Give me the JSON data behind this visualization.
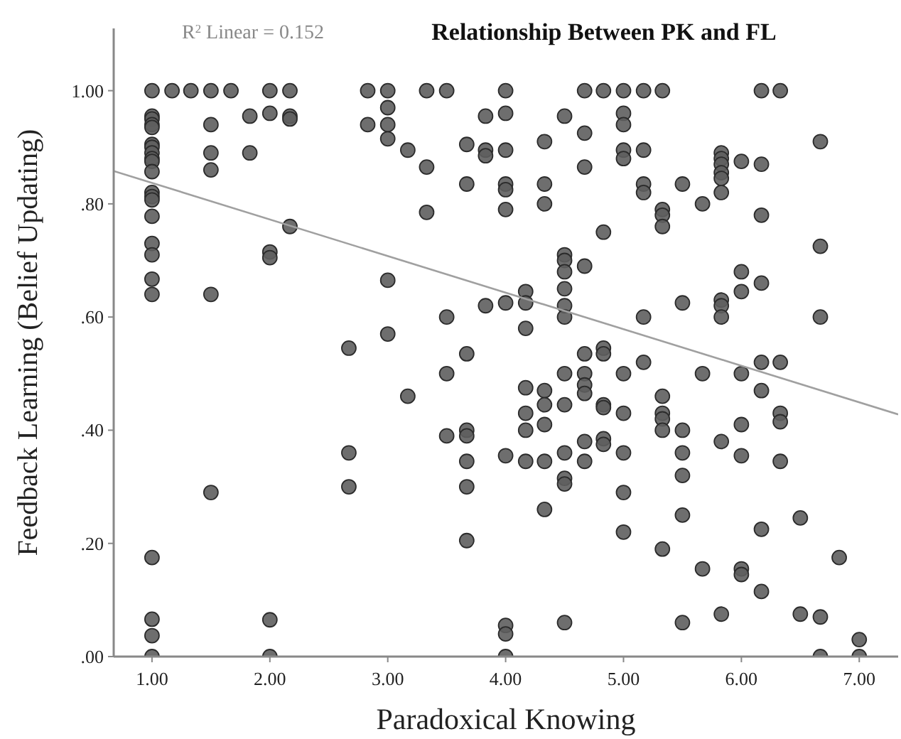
{
  "chart_data": {
    "type": "scatter",
    "title": "Relationship Between PK and FL",
    "xlabel": "Paradoxical Knowing",
    "ylabel": "Feedback Learning (Belief Updating)",
    "annotations": [
      "R$^{2}$ Linear = 0.152"
    ],
    "xlim": [
      0.675,
      7.33
    ],
    "ylim": [
      0,
      1.11
    ],
    "xticks": [
      {
        "value": 1,
        "label": "1.00"
      },
      {
        "value": 2,
        "label": "2.00"
      },
      {
        "value": 3,
        "label": "3.00"
      },
      {
        "value": 4,
        "label": "4.00"
      },
      {
        "value": 5,
        "label": "5.00"
      },
      {
        "value": 6,
        "label": "6.00"
      },
      {
        "value": 7,
        "label": "7.00"
      }
    ],
    "yticks": [
      {
        "value": 0,
        "label": ".00"
      },
      {
        "value": 0.2,
        "label": ".20"
      },
      {
        "value": 0.4,
        "label": ".40"
      },
      {
        "value": 0.6,
        "label": ".60"
      },
      {
        "value": 0.8,
        "label": ".80"
      },
      {
        "value": 1,
        "label": "1.00"
      }
    ],
    "grid": false,
    "series": [
      {
        "marker": "circle",
        "color": "#5e5e5e",
        "x": [
          1,
          1,
          1,
          1,
          1,
          1,
          1,
          1,
          1,
          1,
          1,
          1,
          1,
          1,
          1,
          1,
          1,
          1,
          1,
          1,
          1,
          1,
          1,
          1.17,
          1.33,
          1.5,
          1.5,
          1.5,
          1.5,
          1.5,
          1.5,
          1.67,
          1.83,
          1.83,
          2,
          2,
          2,
          2,
          2,
          2,
          2.17,
          2.17,
          2.17,
          2.17,
          2.67,
          2.67,
          2.67,
          2.83,
          2.83,
          3,
          3,
          3,
          3,
          3,
          3,
          3.17,
          3.17,
          3.33,
          3.33,
          3.33,
          3.5,
          3.5,
          3.5,
          3.5,
          3.67,
          3.67,
          3.67,
          3.67,
          3.67,
          3.67,
          3.67,
          3.67,
          3.83,
          3.83,
          3.83,
          3.83,
          4,
          4,
          4,
          4,
          4,
          4,
          4,
          4,
          4,
          4,
          4,
          4.17,
          4.17,
          4.17,
          4.17,
          4.17,
          4.17,
          4.17,
          4.33,
          4.33,
          4.33,
          4.33,
          4.33,
          4.33,
          4.33,
          4.33,
          4.5,
          4.5,
          4.5,
          4.5,
          4.5,
          4.5,
          4.5,
          4.5,
          4.5,
          4.5,
          4.5,
          4.5,
          4.5,
          4.67,
          4.67,
          4.67,
          4.67,
          4.67,
          4.67,
          4.67,
          4.67,
          4.67,
          4.67,
          4.83,
          4.83,
          4.83,
          4.83,
          4.83,
          4.83,
          4.83,
          4.83,
          5,
          5,
          5,
          5,
          5,
          5,
          5,
          5,
          5,
          5,
          5.17,
          5.17,
          5.17,
          5.17,
          5.17,
          5.17,
          5.33,
          5.33,
          5.33,
          5.33,
          5.33,
          5.33,
          5.33,
          5.33,
          5.33,
          5.5,
          5.5,
          5.5,
          5.5,
          5.5,
          5.5,
          5.5,
          5.67,
          5.67,
          5.67,
          5.83,
          5.83,
          5.83,
          5.83,
          5.83,
          5.83,
          5.83,
          5.83,
          5.83,
          5.83,
          5.83,
          6,
          6,
          6,
          6,
          6,
          6,
          6,
          6,
          6.17,
          6.17,
          6.17,
          6.17,
          6.17,
          6.17,
          6.17,
          6.17,
          6.33,
          6.33,
          6.33,
          6.33,
          6.33,
          6.5,
          6.5,
          6.67,
          6.67,
          6.67,
          6.67,
          6.67,
          6.83,
          7,
          7
        ],
        "values": [
          1,
          0.955,
          0.95,
          0.94,
          0.935,
          0.905,
          0.9,
          0.89,
          0.88,
          0.875,
          0.857,
          0.82,
          0.813,
          0.807,
          0.778,
          0.73,
          0.71,
          0.667,
          0.64,
          0.175,
          0.066,
          0.037,
          0,
          1,
          1,
          1,
          0.94,
          0.89,
          0.86,
          0.64,
          0.29,
          1,
          0.955,
          0.89,
          1,
          0.96,
          0.715,
          0.705,
          0.065,
          0,
          1,
          0.955,
          0.95,
          0.76,
          0.545,
          0.36,
          0.3,
          1,
          0.94,
          1,
          0.97,
          0.94,
          0.915,
          0.665,
          0.57,
          0.895,
          0.46,
          1,
          0.865,
          0.785,
          1,
          0.6,
          0.5,
          0.39,
          0.905,
          0.835,
          0.535,
          0.4,
          0.39,
          0.345,
          0.3,
          0.205,
          0.955,
          0.895,
          0.885,
          0.62,
          1,
          0.96,
          0.895,
          0.835,
          0.825,
          0.79,
          0.625,
          0.355,
          0.055,
          0.04,
          0,
          0.645,
          0.625,
          0.58,
          0.475,
          0.43,
          0.4,
          0.345,
          0.91,
          0.835,
          0.8,
          0.47,
          0.445,
          0.41,
          0.345,
          0.26,
          0.955,
          0.71,
          0.7,
          0.68,
          0.65,
          0.62,
          0.6,
          0.5,
          0.445,
          0.36,
          0.315,
          0.305,
          0.06,
          1,
          0.925,
          0.865,
          0.69,
          0.535,
          0.5,
          0.48,
          0.465,
          0.38,
          0.345,
          1,
          0.75,
          0.545,
          0.535,
          0.445,
          0.44,
          0.385,
          0.375,
          1,
          0.96,
          0.94,
          0.895,
          0.88,
          0.5,
          0.43,
          0.36,
          0.29,
          0.22,
          1,
          0.895,
          0.835,
          0.82,
          0.6,
          0.52,
          1,
          0.79,
          0.78,
          0.76,
          0.46,
          0.43,
          0.42,
          0.4,
          0.19,
          0.835,
          0.625,
          0.4,
          0.36,
          0.32,
          0.25,
          0.06,
          0.8,
          0.5,
          0.155,
          0.89,
          0.88,
          0.87,
          0.855,
          0.845,
          0.82,
          0.63,
          0.62,
          0.6,
          0.38,
          0.075,
          0.875,
          0.68,
          0.645,
          0.5,
          0.41,
          0.355,
          0.155,
          0.145,
          1,
          0.87,
          0.78,
          0.66,
          0.52,
          0.47,
          0.225,
          0.115,
          1,
          0.52,
          0.43,
          0.415,
          0.345,
          0.245,
          0.075,
          0.91,
          0.725,
          0.6,
          0.07,
          0,
          0.175,
          0.03,
          0
        ]
      },
      {
        "type": "line",
        "color": "#a0a0a0",
        "x": [
          0.675,
          7.33
        ],
        "values": [
          0.858,
          0.428
        ]
      }
    ]
  }
}
